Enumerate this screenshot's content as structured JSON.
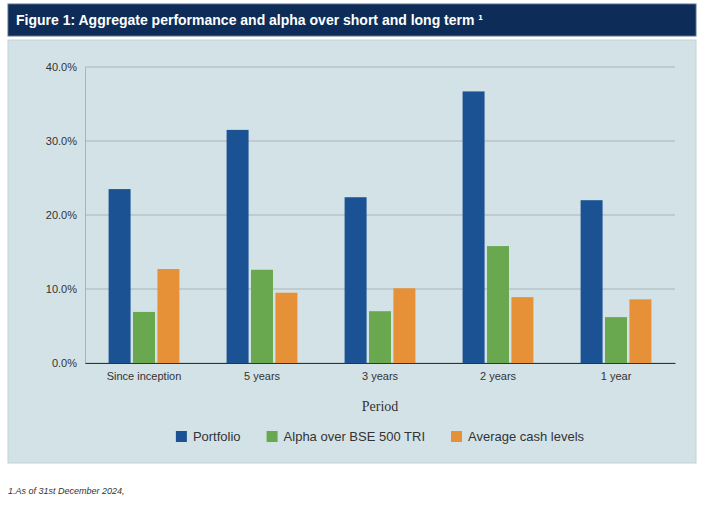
{
  "chart_data": {
    "type": "bar",
    "title": "Figure 1:  Aggregate performance and alpha over short and long term ¹",
    "xlabel": "Period",
    "categories": [
      "Since inception",
      "5 years",
      "3 years",
      "2 years",
      "1 year"
    ],
    "series": [
      {
        "name": "Portfolio",
        "color": "#1a5294",
        "values": [
          23.5,
          31.5,
          22.4,
          36.7,
          22.0
        ]
      },
      {
        "name": "Alpha over BSE 500 TRI",
        "color": "#6aa84f",
        "values": [
          6.9,
          12.6,
          7.0,
          15.8,
          6.2
        ]
      },
      {
        "name": "Average cash levels",
        "color": "#e69138",
        "values": [
          12.7,
          9.5,
          10.1,
          8.9,
          8.6
        ]
      }
    ],
    "ylim": [
      0,
      40
    ],
    "yticks": [
      {
        "value": 0,
        "label": "0.0%"
      },
      {
        "value": 10,
        "label": "10.0%"
      },
      {
        "value": 20,
        "label": "20.0%"
      },
      {
        "value": 30,
        "label": "30.0%"
      },
      {
        "value": 40,
        "label": "40.0%"
      }
    ],
    "grid": true,
    "legend": "bottom",
    "annotations": [
      "1.As of 31st December 2024,"
    ]
  }
}
